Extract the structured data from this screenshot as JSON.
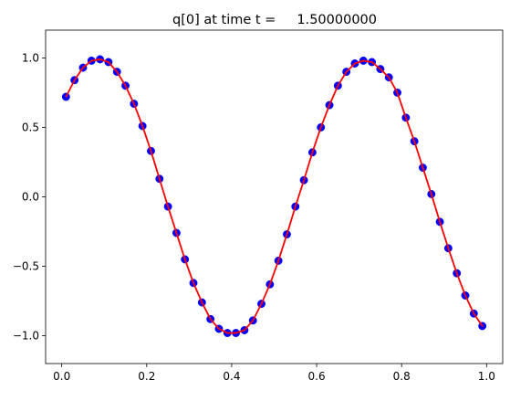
{
  "title": "q[0] at time t =     1.50000000",
  "chart_data": {
    "type": "line",
    "title": "q[0] at time t =     1.50000000",
    "xlabel": "",
    "ylabel": "",
    "xlim": [
      -0.038,
      1.038
    ],
    "ylim": [
      -1.2,
      1.2
    ],
    "xticks": [
      0.0,
      0.2,
      0.4,
      0.6,
      0.8,
      1.0
    ],
    "xtick_labels": [
      "0.0",
      "0.2",
      "0.4",
      "0.6",
      "0.8",
      "1.0"
    ],
    "yticks": [
      -1.0,
      -0.5,
      0.0,
      0.5,
      1.0
    ],
    "ytick_labels": [
      "−1.0",
      "−0.5",
      "0.0",
      "0.5",
      "1.0"
    ],
    "grid": false,
    "legend": "none",
    "series": [
      {
        "style": "markers",
        "color": "#0000ff",
        "x": [
          0.01,
          0.03,
          0.05,
          0.07,
          0.09,
          0.11,
          0.13,
          0.15,
          0.17,
          0.19,
          0.21,
          0.23,
          0.25,
          0.27,
          0.29,
          0.31,
          0.33,
          0.35,
          0.37,
          0.39,
          0.41,
          0.43,
          0.45,
          0.47,
          0.49,
          0.51,
          0.53,
          0.55,
          0.57,
          0.59,
          0.61,
          0.63,
          0.65,
          0.67,
          0.69,
          0.71,
          0.73,
          0.75,
          0.77,
          0.79,
          0.81,
          0.83,
          0.85,
          0.87,
          0.89,
          0.91,
          0.93,
          0.95,
          0.97,
          0.99
        ],
        "y": [
          0.72,
          0.84,
          0.93,
          0.98,
          0.99,
          0.97,
          0.9,
          0.8,
          0.67,
          0.51,
          0.33,
          0.13,
          -0.07,
          -0.26,
          -0.45,
          -0.62,
          -0.76,
          -0.88,
          -0.95,
          -0.98,
          -0.98,
          -0.96,
          -0.89,
          -0.77,
          -0.63,
          -0.46,
          -0.27,
          -0.07,
          0.12,
          0.32,
          0.5,
          0.66,
          0.8,
          0.9,
          0.96,
          0.98,
          0.97,
          0.92,
          0.86,
          0.75,
          0.57,
          0.4,
          0.21,
          0.02,
          -0.18,
          -0.37,
          -0.55,
          -0.71,
          -0.84,
          -0.93
        ]
      },
      {
        "style": "line",
        "color": "#ff0000",
        "x": [
          0.01,
          0.03,
          0.05,
          0.07,
          0.09,
          0.11,
          0.13,
          0.15,
          0.17,
          0.19,
          0.21,
          0.23,
          0.25,
          0.27,
          0.29,
          0.31,
          0.33,
          0.35,
          0.37,
          0.39,
          0.41,
          0.43,
          0.45,
          0.47,
          0.49,
          0.51,
          0.53,
          0.55,
          0.57,
          0.59,
          0.61,
          0.63,
          0.65,
          0.67,
          0.69,
          0.71,
          0.73,
          0.75,
          0.77,
          0.79,
          0.81,
          0.83,
          0.85,
          0.87,
          0.89,
          0.91,
          0.93,
          0.95,
          0.97,
          0.99
        ],
        "y": [
          0.72,
          0.84,
          0.93,
          0.98,
          0.99,
          0.97,
          0.9,
          0.8,
          0.67,
          0.51,
          0.33,
          0.13,
          -0.07,
          -0.26,
          -0.45,
          -0.62,
          -0.76,
          -0.88,
          -0.95,
          -0.98,
          -0.98,
          -0.96,
          -0.89,
          -0.77,
          -0.63,
          -0.46,
          -0.27,
          -0.07,
          0.12,
          0.32,
          0.5,
          0.66,
          0.8,
          0.9,
          0.96,
          0.98,
          0.97,
          0.92,
          0.86,
          0.75,
          0.57,
          0.4,
          0.21,
          0.02,
          -0.18,
          -0.37,
          -0.55,
          -0.71,
          -0.84,
          -0.93
        ]
      }
    ]
  }
}
